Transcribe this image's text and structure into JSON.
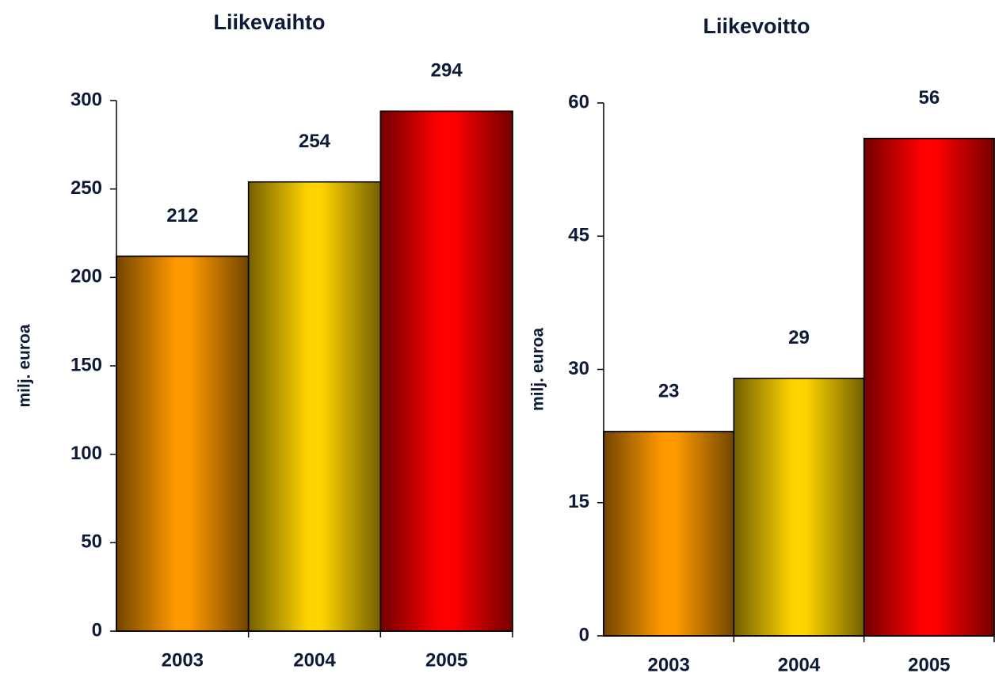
{
  "chart_data": [
    {
      "type": "bar",
      "title": "Liikevaihto",
      "ylabel": "milj. euroa",
      "categories": [
        "2003",
        "2004",
        "2005"
      ],
      "values": [
        212,
        254,
        294
      ],
      "colors": [
        "#ff9900",
        "#ffd400",
        "#ff0000"
      ],
      "ylim": [
        0,
        300
      ],
      "yticks": [
        0,
        50,
        100,
        150,
        200,
        250,
        300
      ]
    },
    {
      "type": "bar",
      "title": "Liikevoitto",
      "ylabel": "milj. euroa",
      "categories": [
        "2003",
        "2004",
        "2005"
      ],
      "values": [
        23,
        29,
        56
      ],
      "colors": [
        "#ff9900",
        "#ffd400",
        "#ff0000"
      ],
      "ylim": [
        0,
        60
      ],
      "yticks": [
        0,
        15,
        30,
        45,
        60
      ]
    }
  ]
}
